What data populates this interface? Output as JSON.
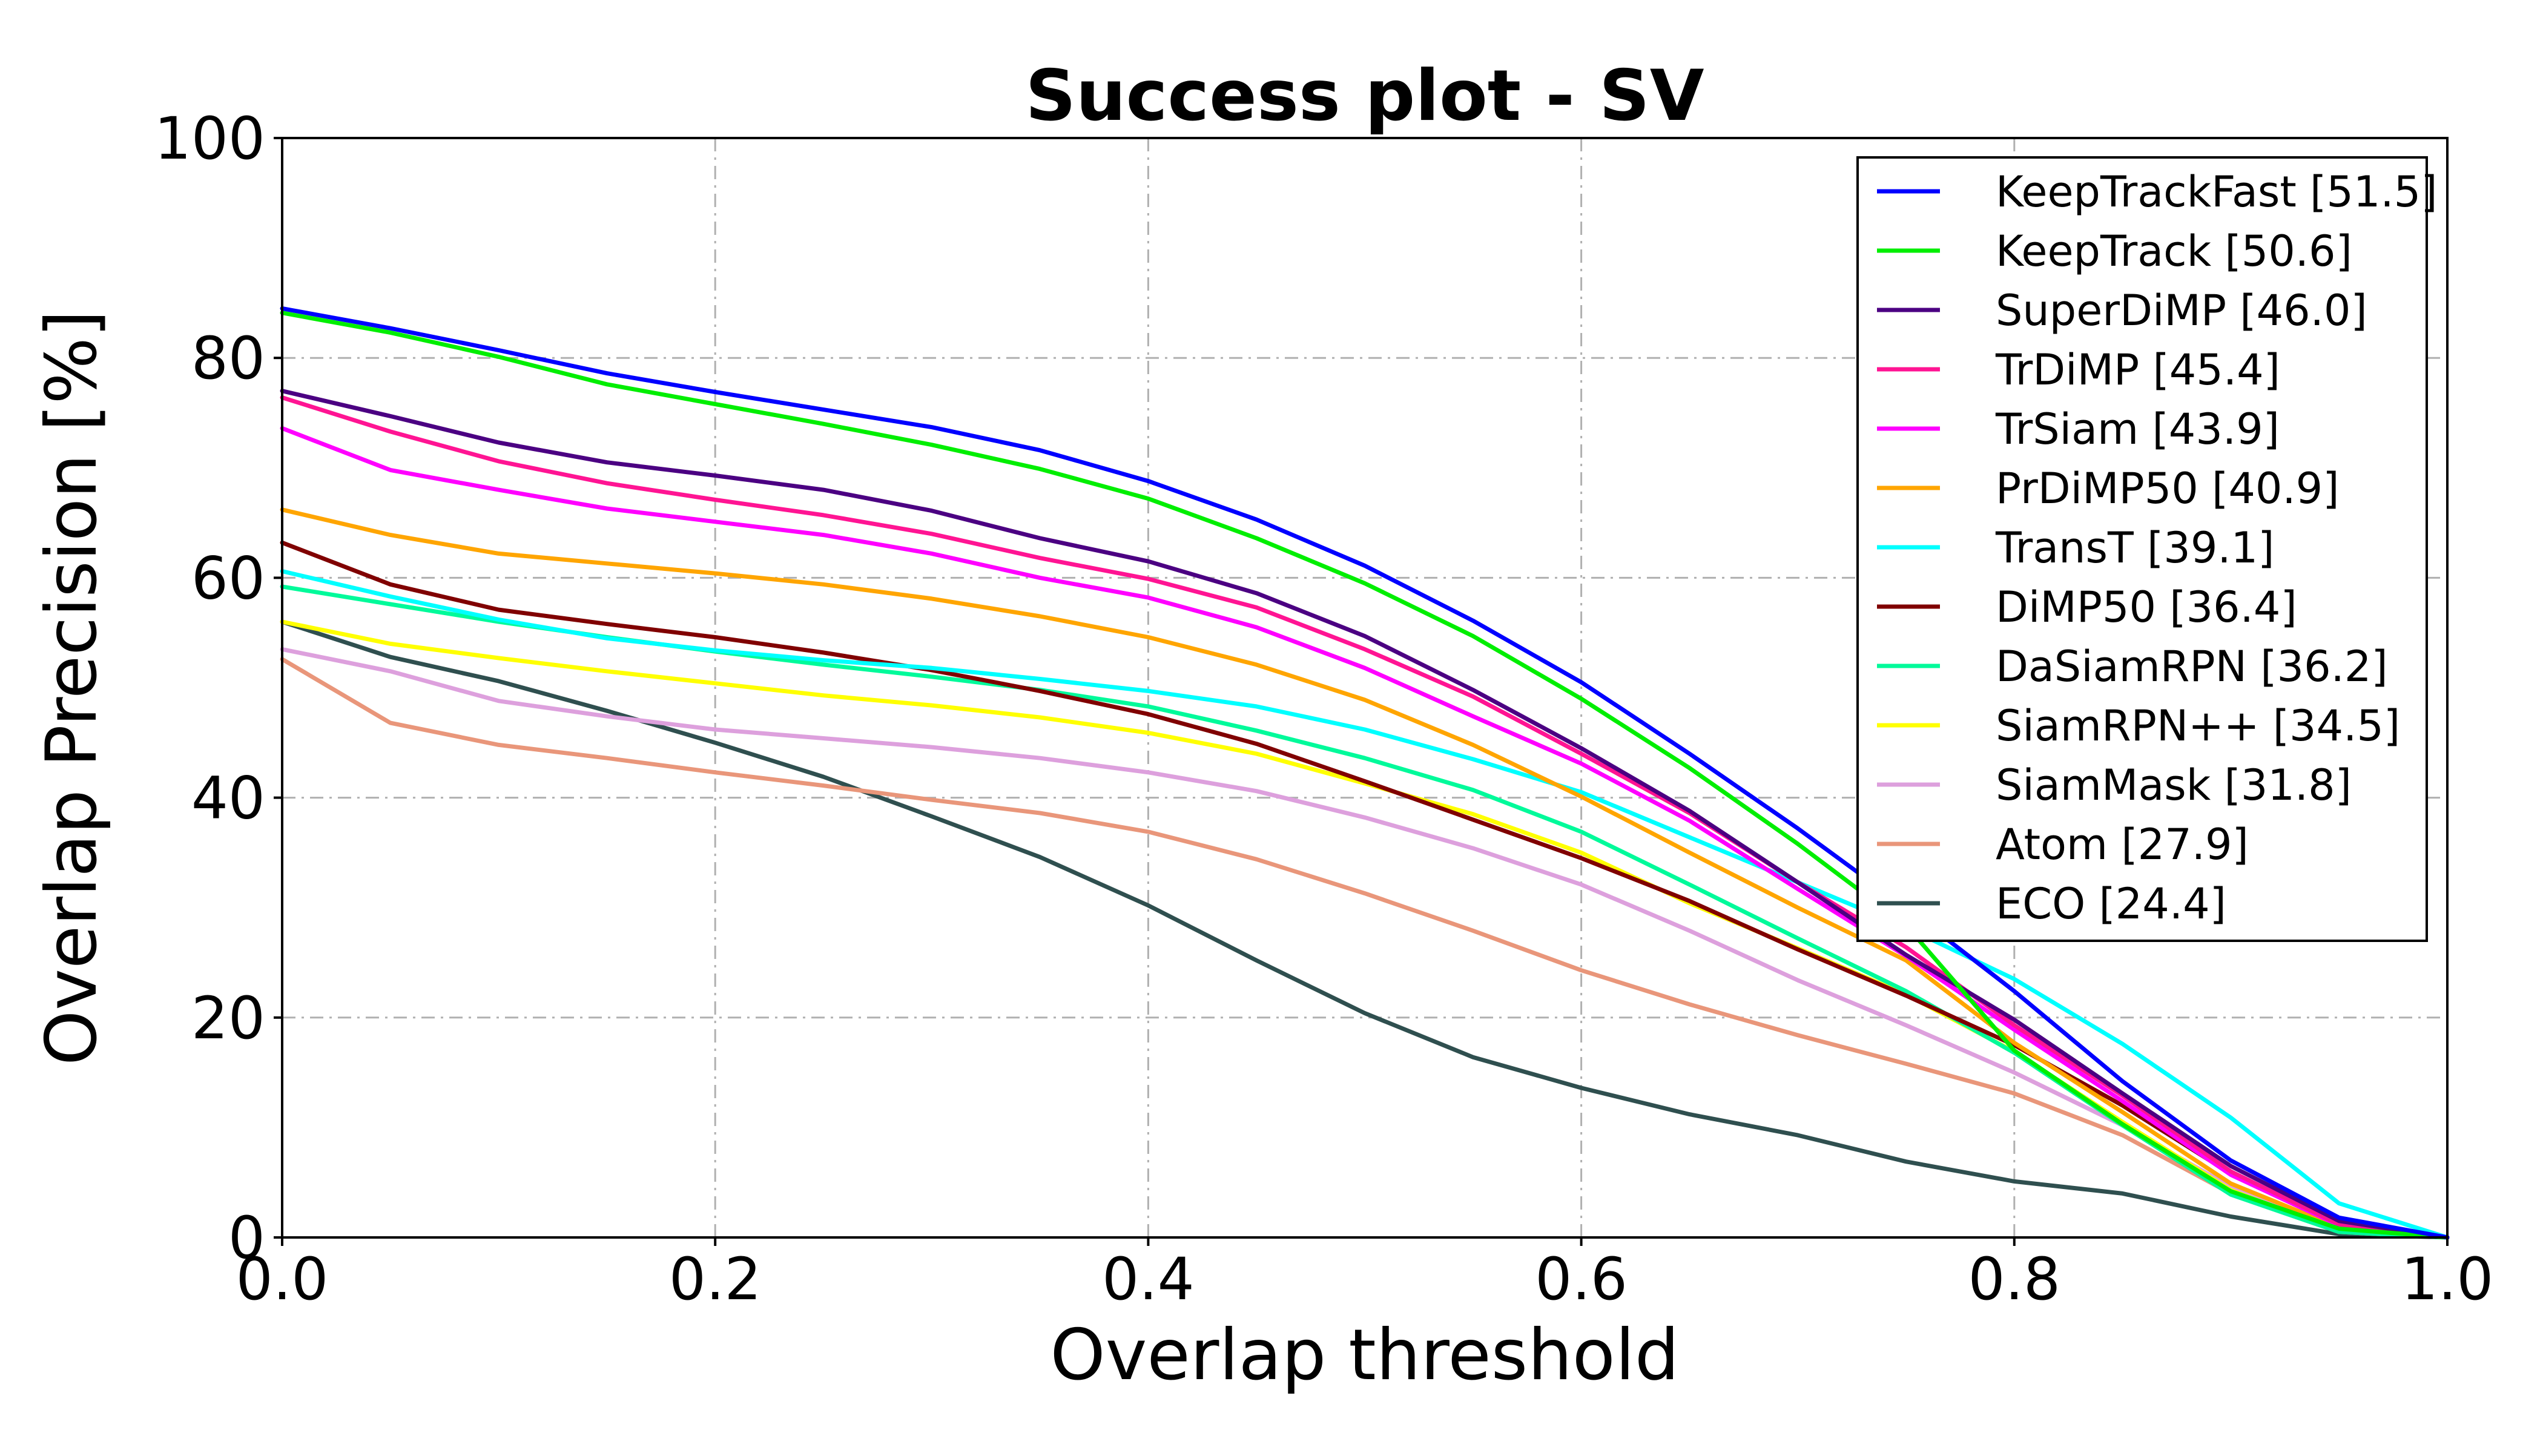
{
  "chart_data": {
    "type": "line",
    "title": "Success plot - SV",
    "xlabel": "Overlap threshold",
    "ylabel": "Overlap Precision [%]",
    "xlim": [
      0.0,
      1.0
    ],
    "ylim": [
      0,
      100
    ],
    "xticks": [
      0.0,
      0.2,
      0.4,
      0.6,
      0.8,
      1.0
    ],
    "xtick_labels": [
      "0.0",
      "0.2",
      "0.4",
      "0.6",
      "0.8",
      "1.0"
    ],
    "yticks": [
      0,
      20,
      40,
      60,
      80,
      100
    ],
    "ytick_labels": [
      "0",
      "20",
      "40",
      "60",
      "80",
      "100"
    ],
    "grid": true,
    "legend_position": "top-right",
    "x": [
      0.0,
      0.05,
      0.1,
      0.15,
      0.2,
      0.25,
      0.3,
      0.35,
      0.4,
      0.45,
      0.5,
      0.55,
      0.6,
      0.65,
      0.7,
      0.75,
      0.8,
      0.85,
      0.9,
      0.95,
      1.0
    ],
    "series": [
      {
        "name": "KeepTrackFast [51.5]",
        "color": "#0000ff",
        "values": [
          84.5,
          82.7,
          80.7,
          78.6,
          76.9,
          75.3,
          73.7,
          71.6,
          68.8,
          65.3,
          61.1,
          56.1,
          50.5,
          44.0,
          37.2,
          30.0,
          22.4,
          14.2,
          7.0,
          1.8,
          0.0
        ]
      },
      {
        "name": "KeepTrack [50.6]",
        "color": "#00ee00",
        "values": [
          84.1,
          82.3,
          80.1,
          77.6,
          75.8,
          74.0,
          72.1,
          69.9,
          67.2,
          63.6,
          59.5,
          54.7,
          49.0,
          42.7,
          35.8,
          28.4,
          17.0,
          10.3,
          4.2,
          0.8,
          0.0
        ]
      },
      {
        "name": "SuperDiMP [46.0]",
        "color": "#4b0082",
        "values": [
          77.0,
          74.7,
          72.3,
          70.5,
          69.3,
          68.0,
          66.1,
          63.6,
          61.5,
          58.6,
          54.7,
          49.8,
          44.5,
          38.8,
          32.3,
          25.7,
          19.8,
          13.1,
          6.5,
          1.5,
          0.0
        ]
      },
      {
        "name": "TrDiMP [45.4]",
        "color": "#ff1493",
        "values": [
          76.4,
          73.3,
          70.6,
          68.6,
          67.1,
          65.7,
          64.0,
          61.8,
          59.9,
          57.3,
          53.5,
          49.2,
          44.0,
          38.6,
          32.3,
          26.4,
          19.3,
          12.9,
          6.0,
          1.2,
          0.0
        ]
      },
      {
        "name": "TrSiam [43.9]",
        "color": "#ff00ff",
        "values": [
          73.6,
          69.8,
          68.0,
          66.3,
          65.1,
          63.9,
          62.2,
          60.0,
          58.2,
          55.5,
          51.8,
          47.4,
          43.1,
          37.9,
          31.7,
          25.6,
          18.9,
          12.4,
          5.7,
          1.1,
          0.0
        ]
      },
      {
        "name": "PrDiMP50 [40.9]",
        "color": "#ffa500",
        "values": [
          66.2,
          63.9,
          62.2,
          61.3,
          60.4,
          59.4,
          58.1,
          56.5,
          54.6,
          52.1,
          48.9,
          44.8,
          40.1,
          35.0,
          30.0,
          25.2,
          17.7,
          11.4,
          4.9,
          0.9,
          0.0
        ]
      },
      {
        "name": "TransT [39.1]",
        "color": "#00ffff",
        "values": [
          60.6,
          58.3,
          56.2,
          54.5,
          53.4,
          52.5,
          51.8,
          50.8,
          49.7,
          48.3,
          46.2,
          43.5,
          40.5,
          36.4,
          32.3,
          28.2,
          23.5,
          17.6,
          10.9,
          3.1,
          0.0
        ]
      },
      {
        "name": "DiMP50 [36.4]",
        "color": "#800000",
        "values": [
          63.2,
          59.4,
          57.1,
          55.8,
          54.6,
          53.2,
          51.6,
          49.7,
          47.6,
          44.9,
          41.5,
          38.0,
          34.5,
          30.6,
          26.2,
          22.0,
          17.5,
          12.0,
          5.8,
          1.2,
          0.0
        ]
      },
      {
        "name": "DaSiamRPN [36.2]",
        "color": "#00fa9a",
        "values": [
          59.2,
          57.6,
          56.0,
          54.6,
          53.3,
          52.1,
          51.0,
          49.8,
          48.3,
          46.1,
          43.6,
          40.7,
          36.9,
          32.1,
          27.2,
          22.4,
          16.8,
          10.2,
          3.9,
          0.5,
          0.0
        ]
      },
      {
        "name": "SiamRPN++ [34.5]",
        "color": "#ffff00",
        "values": [
          56.0,
          54.0,
          52.7,
          51.5,
          50.4,
          49.3,
          48.4,
          47.3,
          45.9,
          44.0,
          41.3,
          38.5,
          35.0,
          30.4,
          26.3,
          22.1,
          16.9,
          10.5,
          4.3,
          0.6,
          0.0
        ]
      },
      {
        "name": "SiamMask [31.8]",
        "color": "#dda0dd",
        "values": [
          53.5,
          51.5,
          48.8,
          47.4,
          46.2,
          45.4,
          44.6,
          43.6,
          42.3,
          40.6,
          38.2,
          35.4,
          32.1,
          27.9,
          23.4,
          19.3,
          15.0,
          10.2,
          4.6,
          0.7,
          0.0
        ]
      },
      {
        "name": "Atom [27.9]",
        "color": "#e9967a",
        "values": [
          52.6,
          46.8,
          44.8,
          43.6,
          42.3,
          41.1,
          39.8,
          38.6,
          36.9,
          34.4,
          31.3,
          27.9,
          24.3,
          21.2,
          18.4,
          15.8,
          13.1,
          9.3,
          4.0,
          0.5,
          0.0
        ]
      },
      {
        "name": "ECO [24.4]",
        "color": "#2f4f4f",
        "values": [
          56.0,
          52.8,
          50.6,
          47.9,
          45.0,
          41.9,
          38.3,
          34.6,
          30.2,
          25.2,
          20.4,
          16.4,
          13.6,
          11.2,
          9.3,
          6.9,
          5.1,
          4.0,
          1.9,
          0.3,
          0.0
        ]
      }
    ]
  }
}
